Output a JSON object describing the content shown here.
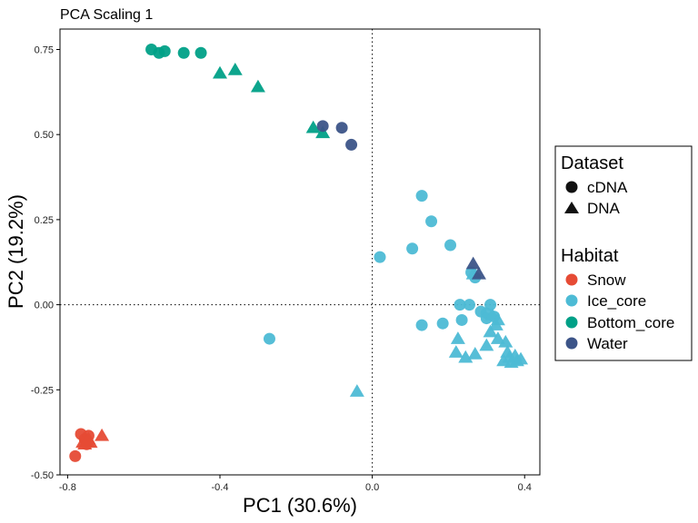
{
  "chart_data": {
    "type": "scatter",
    "title": "PCA Scaling 1",
    "xlabel": "PC1 (30.6%)",
    "ylabel": "PC2 (19.2%)",
    "xlim": [
      -0.82,
      0.44
    ],
    "ylim": [
      -0.5,
      0.81
    ],
    "xticks": [
      -0.8,
      -0.4,
      0.0,
      0.4
    ],
    "xtick_labels": [
      "-0.8",
      "-0.4",
      "0.0",
      "0.4"
    ],
    "yticks": [
      -0.5,
      -0.25,
      0.0,
      0.25,
      0.5,
      0.75
    ],
    "ytick_labels": [
      "-0.50",
      "-0.25",
      "0.00",
      "0.25",
      "0.50",
      "0.75"
    ],
    "grid": false,
    "reference_lines": {
      "x": 0,
      "y": 0,
      "style": "dotted"
    },
    "legend_position": "right",
    "legend": {
      "shape_title": "Dataset",
      "shapes": [
        {
          "label": "cDNA",
          "shape": "circle"
        },
        {
          "label": "DNA",
          "shape": "triangle"
        }
      ],
      "color_title": "Habitat",
      "colors": [
        {
          "label": "Snow",
          "color": "#E64B35"
        },
        {
          "label": "Ice_core",
          "color": "#4DBBD5"
        },
        {
          "label": "Bottom_core",
          "color": "#00A087"
        },
        {
          "label": "Water",
          "color": "#3C5488"
        }
      ]
    },
    "series": [
      {
        "name": "Snow",
        "color": "#E64B35",
        "points": [
          {
            "x": -0.78,
            "y": -0.445,
            "shape": "circle"
          },
          {
            "x": -0.765,
            "y": -0.38,
            "shape": "circle"
          },
          {
            "x": -0.755,
            "y": -0.395,
            "shape": "circle"
          },
          {
            "x": -0.75,
            "y": -0.41,
            "shape": "circle"
          },
          {
            "x": -0.745,
            "y": -0.385,
            "shape": "circle"
          },
          {
            "x": -0.76,
            "y": -0.405,
            "shape": "triangle"
          },
          {
            "x": -0.75,
            "y": -0.4,
            "shape": "triangle"
          },
          {
            "x": -0.745,
            "y": -0.395,
            "shape": "triangle"
          },
          {
            "x": -0.74,
            "y": -0.405,
            "shape": "triangle"
          },
          {
            "x": -0.755,
            "y": -0.41,
            "shape": "triangle"
          },
          {
            "x": -0.71,
            "y": -0.385,
            "shape": "triangle"
          }
        ]
      },
      {
        "name": "Ice_core",
        "color": "#4DBBD5",
        "points": [
          {
            "x": 0.13,
            "y": 0.32,
            "shape": "circle"
          },
          {
            "x": 0.155,
            "y": 0.245,
            "shape": "circle"
          },
          {
            "x": 0.105,
            "y": 0.165,
            "shape": "circle"
          },
          {
            "x": 0.205,
            "y": 0.175,
            "shape": "circle"
          },
          {
            "x": 0.02,
            "y": 0.14,
            "shape": "circle"
          },
          {
            "x": 0.26,
            "y": 0.095,
            "shape": "circle"
          },
          {
            "x": 0.27,
            "y": 0.08,
            "shape": "circle"
          },
          {
            "x": 0.23,
            "y": 0.0,
            "shape": "circle"
          },
          {
            "x": 0.255,
            "y": 0.0,
            "shape": "circle"
          },
          {
            "x": 0.285,
            "y": -0.02,
            "shape": "circle"
          },
          {
            "x": 0.3,
            "y": -0.025,
            "shape": "circle"
          },
          {
            "x": 0.31,
            "y": 0.0,
            "shape": "circle"
          },
          {
            "x": 0.3,
            "y": -0.04,
            "shape": "circle"
          },
          {
            "x": 0.32,
            "y": -0.035,
            "shape": "circle"
          },
          {
            "x": 0.235,
            "y": -0.045,
            "shape": "circle"
          },
          {
            "x": 0.185,
            "y": -0.055,
            "shape": "circle"
          },
          {
            "x": 0.13,
            "y": -0.06,
            "shape": "circle"
          },
          {
            "x": -0.27,
            "y": -0.1,
            "shape": "circle"
          },
          {
            "x": 0.265,
            "y": 0.09,
            "shape": "triangle"
          },
          {
            "x": 0.315,
            "y": -0.03,
            "shape": "triangle"
          },
          {
            "x": 0.33,
            "y": -0.045,
            "shape": "triangle"
          },
          {
            "x": 0.325,
            "y": -0.06,
            "shape": "triangle"
          },
          {
            "x": 0.31,
            "y": -0.08,
            "shape": "triangle"
          },
          {
            "x": 0.33,
            "y": -0.1,
            "shape": "triangle"
          },
          {
            "x": 0.3,
            "y": -0.12,
            "shape": "triangle"
          },
          {
            "x": 0.225,
            "y": -0.1,
            "shape": "triangle"
          },
          {
            "x": 0.22,
            "y": -0.14,
            "shape": "triangle"
          },
          {
            "x": 0.245,
            "y": -0.155,
            "shape": "triangle"
          },
          {
            "x": 0.27,
            "y": -0.145,
            "shape": "triangle"
          },
          {
            "x": 0.35,
            "y": -0.11,
            "shape": "triangle"
          },
          {
            "x": 0.355,
            "y": -0.14,
            "shape": "triangle"
          },
          {
            "x": 0.36,
            "y": -0.155,
            "shape": "triangle"
          },
          {
            "x": 0.375,
            "y": -0.15,
            "shape": "triangle"
          },
          {
            "x": 0.38,
            "y": -0.165,
            "shape": "triangle"
          },
          {
            "x": 0.39,
            "y": -0.16,
            "shape": "triangle"
          },
          {
            "x": 0.345,
            "y": -0.165,
            "shape": "triangle"
          },
          {
            "x": 0.365,
            "y": -0.17,
            "shape": "triangle"
          },
          {
            "x": -0.04,
            "y": -0.255,
            "shape": "triangle"
          }
        ]
      },
      {
        "name": "Bottom_core",
        "color": "#00A087",
        "points": [
          {
            "x": -0.58,
            "y": 0.75,
            "shape": "circle"
          },
          {
            "x": -0.56,
            "y": 0.74,
            "shape": "circle"
          },
          {
            "x": -0.545,
            "y": 0.745,
            "shape": "circle"
          },
          {
            "x": -0.495,
            "y": 0.74,
            "shape": "circle"
          },
          {
            "x": -0.45,
            "y": 0.74,
            "shape": "circle"
          },
          {
            "x": -0.4,
            "y": 0.68,
            "shape": "triangle"
          },
          {
            "x": -0.36,
            "y": 0.69,
            "shape": "triangle"
          },
          {
            "x": -0.3,
            "y": 0.64,
            "shape": "triangle"
          },
          {
            "x": -0.155,
            "y": 0.52,
            "shape": "triangle"
          },
          {
            "x": -0.13,
            "y": 0.505,
            "shape": "triangle"
          }
        ]
      },
      {
        "name": "Water",
        "color": "#3C5488",
        "points": [
          {
            "x": -0.13,
            "y": 0.525,
            "shape": "circle"
          },
          {
            "x": -0.08,
            "y": 0.52,
            "shape": "circle"
          },
          {
            "x": -0.055,
            "y": 0.47,
            "shape": "circle"
          },
          {
            "x": 0.265,
            "y": 0.12,
            "shape": "triangle"
          },
          {
            "x": 0.28,
            "y": 0.09,
            "shape": "triangle"
          }
        ]
      }
    ]
  }
}
